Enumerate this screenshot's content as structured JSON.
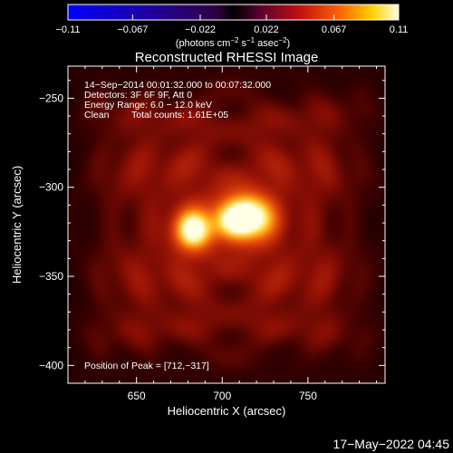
{
  "chart_data": {
    "type": "heatmap",
    "title": "Reconstructed RHESSI Image",
    "xlabel": "Heliocentric X (arcsec)",
    "ylabel": "Heliocentric Y (arcsec)",
    "xlim": [
      610,
      795
    ],
    "ylim": [
      -410,
      -232
    ],
    "xticks": [
      650,
      700,
      750
    ],
    "xtick_labels": [
      "650",
      "700",
      "750"
    ],
    "yticks": [
      -250,
      -300,
      -350,
      -400
    ],
    "ytick_labels": [
      "−250",
      "−300",
      "−350",
      "−400"
    ],
    "colorbar": {
      "range": [
        -0.11,
        0.11
      ],
      "tick_labels": [
        "−0.11",
        "−0.067",
        "−0.022",
        "0.022",
        "0.067",
        "0.11"
      ],
      "unit_label": "(photons cm",
      "unit_sup1": "−2",
      "unit_mid": " s",
      "unit_sup2": "−1",
      "unit_mid2": " asec",
      "unit_sup3": "−2",
      "unit_end": ")"
    },
    "info": {
      "time_range": "14−Sep−2014 00:01:32.000 to 00:07:32.000",
      "detectors": "Detectors: 3F 6F 9F, Att 0",
      "energy": "Energy Range: 6.0 − 12.0 keV",
      "method": "Clean",
      "counts": "Total counts: 1.61E+05",
      "peak": "Position of Peak = [712,−317]"
    },
    "sources": [
      {
        "x": 713,
        "y": -317,
        "peak": 0.11,
        "sigma_x": 11,
        "sigma_y": 9
      },
      {
        "x": 683,
        "y": -324,
        "peak": 0.085,
        "sigma_x": 8,
        "sigma_y": 8
      }
    ],
    "background_level": 0.035
  },
  "footer": {
    "date": "17−May−2022 04:45"
  },
  "colors": {
    "background": "#000000",
    "foreground": "#ffffff"
  }
}
